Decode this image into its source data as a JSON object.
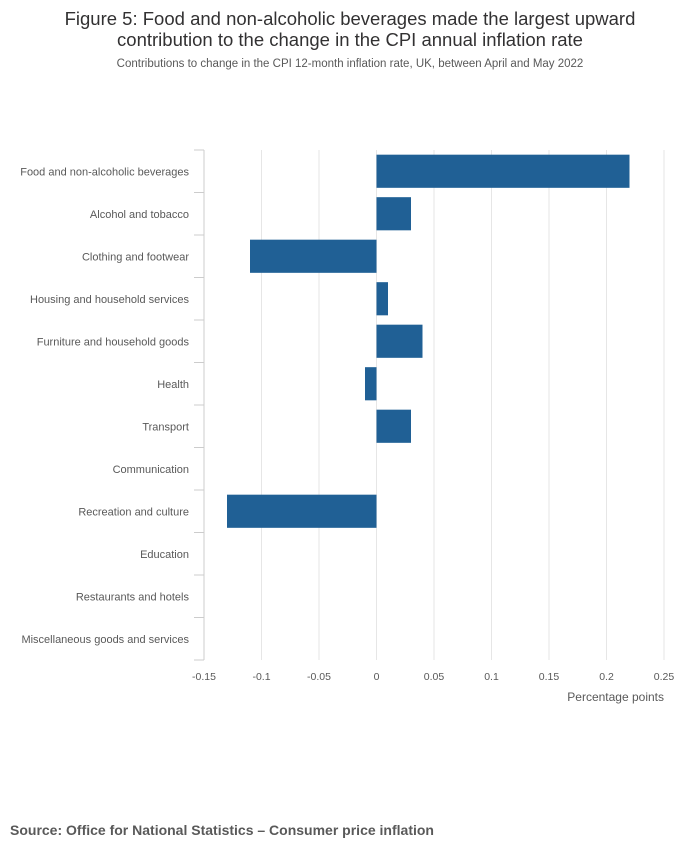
{
  "chart_data": {
    "type": "bar",
    "orientation": "horizontal",
    "title": "Figure 5: Food and non-alcoholic beverages made the largest upward contribution to the change in the CPI annual inflation rate",
    "title_lines": [
      "Figure 5: Food and non-alcoholic beverages made the largest upward",
      "contribution to the change in the CPI annual inflation rate"
    ],
    "subtitle": "Contributions to change in the CPI 12-month inflation rate, UK, between April and May 2022",
    "xlabel": "Percentage points",
    "ylabel": "",
    "xlim": [
      -0.15,
      0.25
    ],
    "x_ticks": [
      -0.15,
      -0.1,
      -0.05,
      0,
      0.05,
      0.1,
      0.15,
      0.2,
      0.25
    ],
    "x_tick_labels": [
      "-0.15",
      "-0.1",
      "-0.05",
      "0",
      "0.05",
      "0.1",
      "0.15",
      "0.2",
      "0.25"
    ],
    "categories": [
      "Food and non-alcoholic beverages",
      "Alcohol and tobacco",
      "Clothing and footwear",
      "Housing and household services",
      "Furniture and household goods",
      "Health",
      "Transport",
      "Communication",
      "Recreation and culture",
      "Education",
      "Restaurants and hotels",
      "Miscellaneous goods and services"
    ],
    "values": [
      0.22,
      0.03,
      -0.11,
      0.01,
      0.04,
      -0.01,
      0.03,
      0,
      -0.13,
      0,
      0,
      0
    ],
    "grid": "vertical",
    "bar_color": "#206095",
    "legend": "none"
  },
  "source": "Source: Office for National Statistics – Consumer price inflation"
}
